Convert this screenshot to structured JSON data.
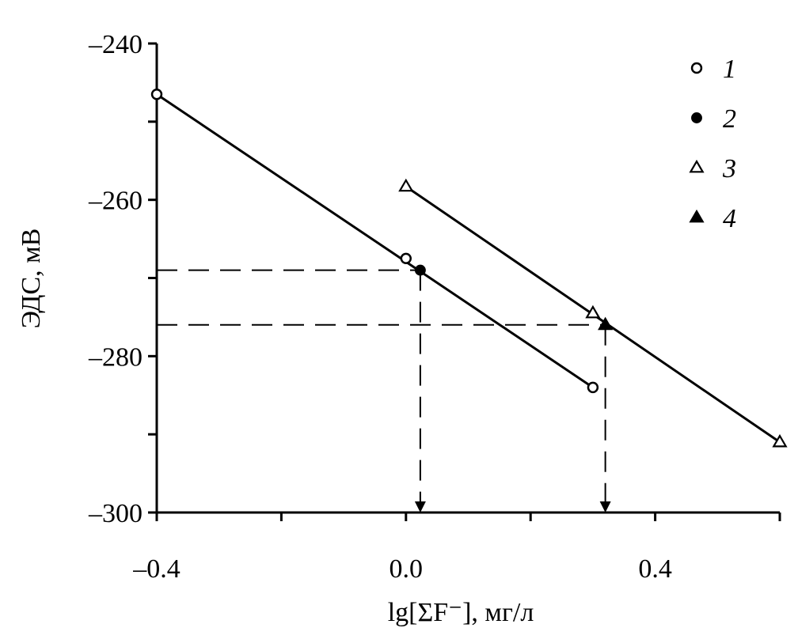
{
  "chart_data": {
    "type": "scatter",
    "xlabel": "lg[ΣF⁻], мг/л",
    "ylabel": "ЭДС, мВ",
    "xlim": [
      -0.4,
      0.6
    ],
    "ylim": [
      -300,
      -240
    ],
    "x_ticks": [
      -0.4,
      -0.2,
      0.0,
      0.2,
      0.4,
      0.6
    ],
    "x_tick_labels": [
      "–0.4",
      "",
      "0.0",
      "",
      "0.4",
      ""
    ],
    "y_ticks": [
      -300,
      -290,
      -280,
      -270,
      -260,
      -250,
      -240
    ],
    "y_tick_labels": [
      "–300",
      "",
      "–280",
      "",
      "–260",
      "",
      "–240"
    ],
    "grid": false,
    "legend": "top-right",
    "series": [
      {
        "name": "1",
        "marker": "open-circle",
        "x": [
          -0.4,
          0.0,
          0.3
        ],
        "y": [
          -246.5,
          -267.5,
          -284
        ]
      },
      {
        "name": "2",
        "marker": "filled-circle",
        "x": [
          0.023
        ],
        "y": [
          -269
        ]
      },
      {
        "name": "3",
        "marker": "open-triangle",
        "x": [
          0.0,
          0.3,
          0.6
        ],
        "y": [
          -258.3,
          -274.5,
          -291
        ]
      },
      {
        "name": "4",
        "marker": "filled-triangle",
        "x": [
          0.32
        ],
        "y": [
          -276
        ]
      }
    ],
    "fit_lines": [
      {
        "x": [
          -0.4,
          0.3
        ],
        "y": [
          -246.5,
          -284
        ]
      },
      {
        "x": [
          0.0,
          0.6
        ],
        "y": [
          -258.3,
          -291
        ]
      }
    ],
    "reference_lines": [
      {
        "y": -269,
        "x_end": 0.023
      },
      {
        "y": -276,
        "x_end": 0.32
      }
    ]
  }
}
